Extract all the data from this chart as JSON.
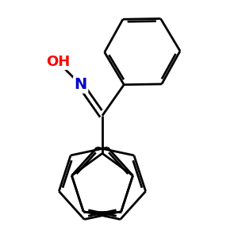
{
  "background_color": "#ffffff",
  "bond_color": "#000000",
  "lw": 2.0,
  "N_color": "#0000cc",
  "O_color": "#ff0000",
  "figsize": [
    3.0,
    3.0
  ],
  "dpi": 100
}
